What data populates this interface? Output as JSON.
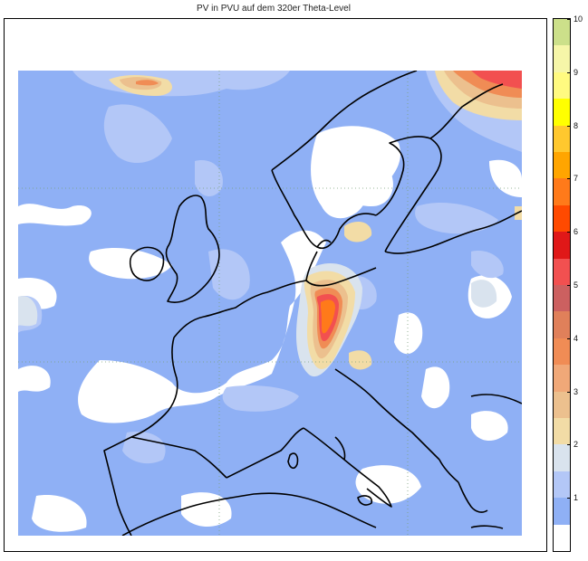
{
  "title": "PV in PVU auf dem 320er Theta-Level",
  "colorbar": {
    "ticks": [
      "1",
      "2",
      "3",
      "4",
      "5",
      "6",
      "7",
      "8",
      "9",
      "10"
    ],
    "levels": [
      {
        "from": 0,
        "to": 0.5,
        "color": "#ffffff"
      },
      {
        "from": 0.5,
        "to": 1,
        "color": "#8fb0f5"
      },
      {
        "from": 1,
        "to": 1.5,
        "color": "#b3c7f7"
      },
      {
        "from": 1.5,
        "to": 2,
        "color": "#d9e3ee"
      },
      {
        "from": 2,
        "to": 2.5,
        "color": "#f2dca6"
      },
      {
        "from": 2.5,
        "to": 3,
        "color": "#ecc08e"
      },
      {
        "from": 3,
        "to": 3.5,
        "color": "#f0a878"
      },
      {
        "from": 3.5,
        "to": 4,
        "color": "#f08c55"
      },
      {
        "from": 4,
        "to": 4.5,
        "color": "#e0805a"
      },
      {
        "from": 4.5,
        "to": 5,
        "color": "#cc6060"
      },
      {
        "from": 5,
        "to": 5.5,
        "color": "#f25050"
      },
      {
        "from": 5.5,
        "to": 6,
        "color": "#e01818"
      },
      {
        "from": 6,
        "to": 6.5,
        "color": "#ff4a00"
      },
      {
        "from": 6.5,
        "to": 7,
        "color": "#ff7a1a"
      },
      {
        "from": 7,
        "to": 7.5,
        "color": "#ffa500"
      },
      {
        "from": 7.5,
        "to": 8,
        "color": "#ffc82e"
      },
      {
        "from": 8,
        "to": 8.5,
        "color": "#ffff00"
      },
      {
        "from": 8.5,
        "to": 9,
        "color": "#fffa80"
      },
      {
        "from": 9,
        "to": 9.5,
        "color": "#f6f6a8"
      },
      {
        "from": 9.5,
        "to": 10,
        "color": "#cce08a"
      }
    ]
  }
}
